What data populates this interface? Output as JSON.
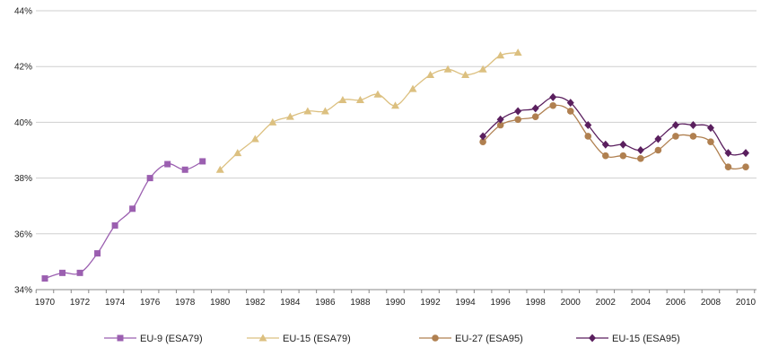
{
  "chart_data": {
    "type": "line",
    "title": "",
    "xlabel": "",
    "ylabel": "",
    "ylim": [
      34,
      44
    ],
    "xlim": [
      1970,
      2010
    ],
    "grid": "horizontal",
    "legend_position": "bottom",
    "y_ticks": [
      "34%",
      "36%",
      "38%",
      "40%",
      "42%",
      "44%"
    ],
    "x_ticks": [
      "1970",
      "1972",
      "1974",
      "1976",
      "1978",
      "1980",
      "1982",
      "1984",
      "1986",
      "1988",
      "1990",
      "1992",
      "1994",
      "1996",
      "1998",
      "2000",
      "2002",
      "2004",
      "2006",
      "2008",
      "2010"
    ],
    "series": [
      {
        "name": "EU-9 (ESA79)",
        "color": "#9b5fb0",
        "marker": "square",
        "x": [
          1970,
          1971,
          1972,
          1973,
          1974,
          1975,
          1976,
          1977,
          1978,
          1979
        ],
        "values": [
          34.4,
          34.6,
          34.6,
          35.3,
          36.3,
          36.9,
          38.0,
          38.5,
          38.3,
          38.6
        ]
      },
      {
        "name": "EU-15 (ESA79)",
        "color": "#dcc080",
        "marker": "triangle",
        "x": [
          1980,
          1981,
          1982,
          1983,
          1984,
          1985,
          1986,
          1987,
          1988,
          1989,
          1990,
          1991,
          1992,
          1993,
          1994,
          1995,
          1996,
          1997
        ],
        "values": [
          38.3,
          38.9,
          39.4,
          40.0,
          40.2,
          40.4,
          40.4,
          40.8,
          40.8,
          41.0,
          40.6,
          41.2,
          41.7,
          41.9,
          41.7,
          41.9,
          42.4,
          42.5
        ]
      },
      {
        "name": "EU-27 (ESA95)",
        "color": "#b08050",
        "marker": "circle",
        "x": [
          1995,
          1996,
          1997,
          1998,
          1999,
          2000,
          2001,
          2002,
          2003,
          2004,
          2005,
          2006,
          2007,
          2008,
          2009,
          2010
        ],
        "values": [
          39.3,
          39.9,
          40.1,
          40.2,
          40.6,
          40.4,
          39.5,
          38.8,
          38.8,
          38.7,
          39.0,
          39.5,
          39.5,
          39.3,
          38.4,
          38.4
        ]
      },
      {
        "name": "EU-15 (ESA95)",
        "color": "#5a1f5e",
        "marker": "diamond",
        "x": [
          1995,
          1996,
          1997,
          1998,
          1999,
          2000,
          2001,
          2002,
          2003,
          2004,
          2005,
          2006,
          2007,
          2008,
          2009,
          2010
        ],
        "values": [
          39.5,
          40.1,
          40.4,
          40.5,
          40.9,
          40.7,
          39.9,
          39.2,
          39.2,
          39.0,
          39.4,
          39.9,
          39.9,
          39.8,
          38.9,
          38.9
        ]
      }
    ]
  }
}
